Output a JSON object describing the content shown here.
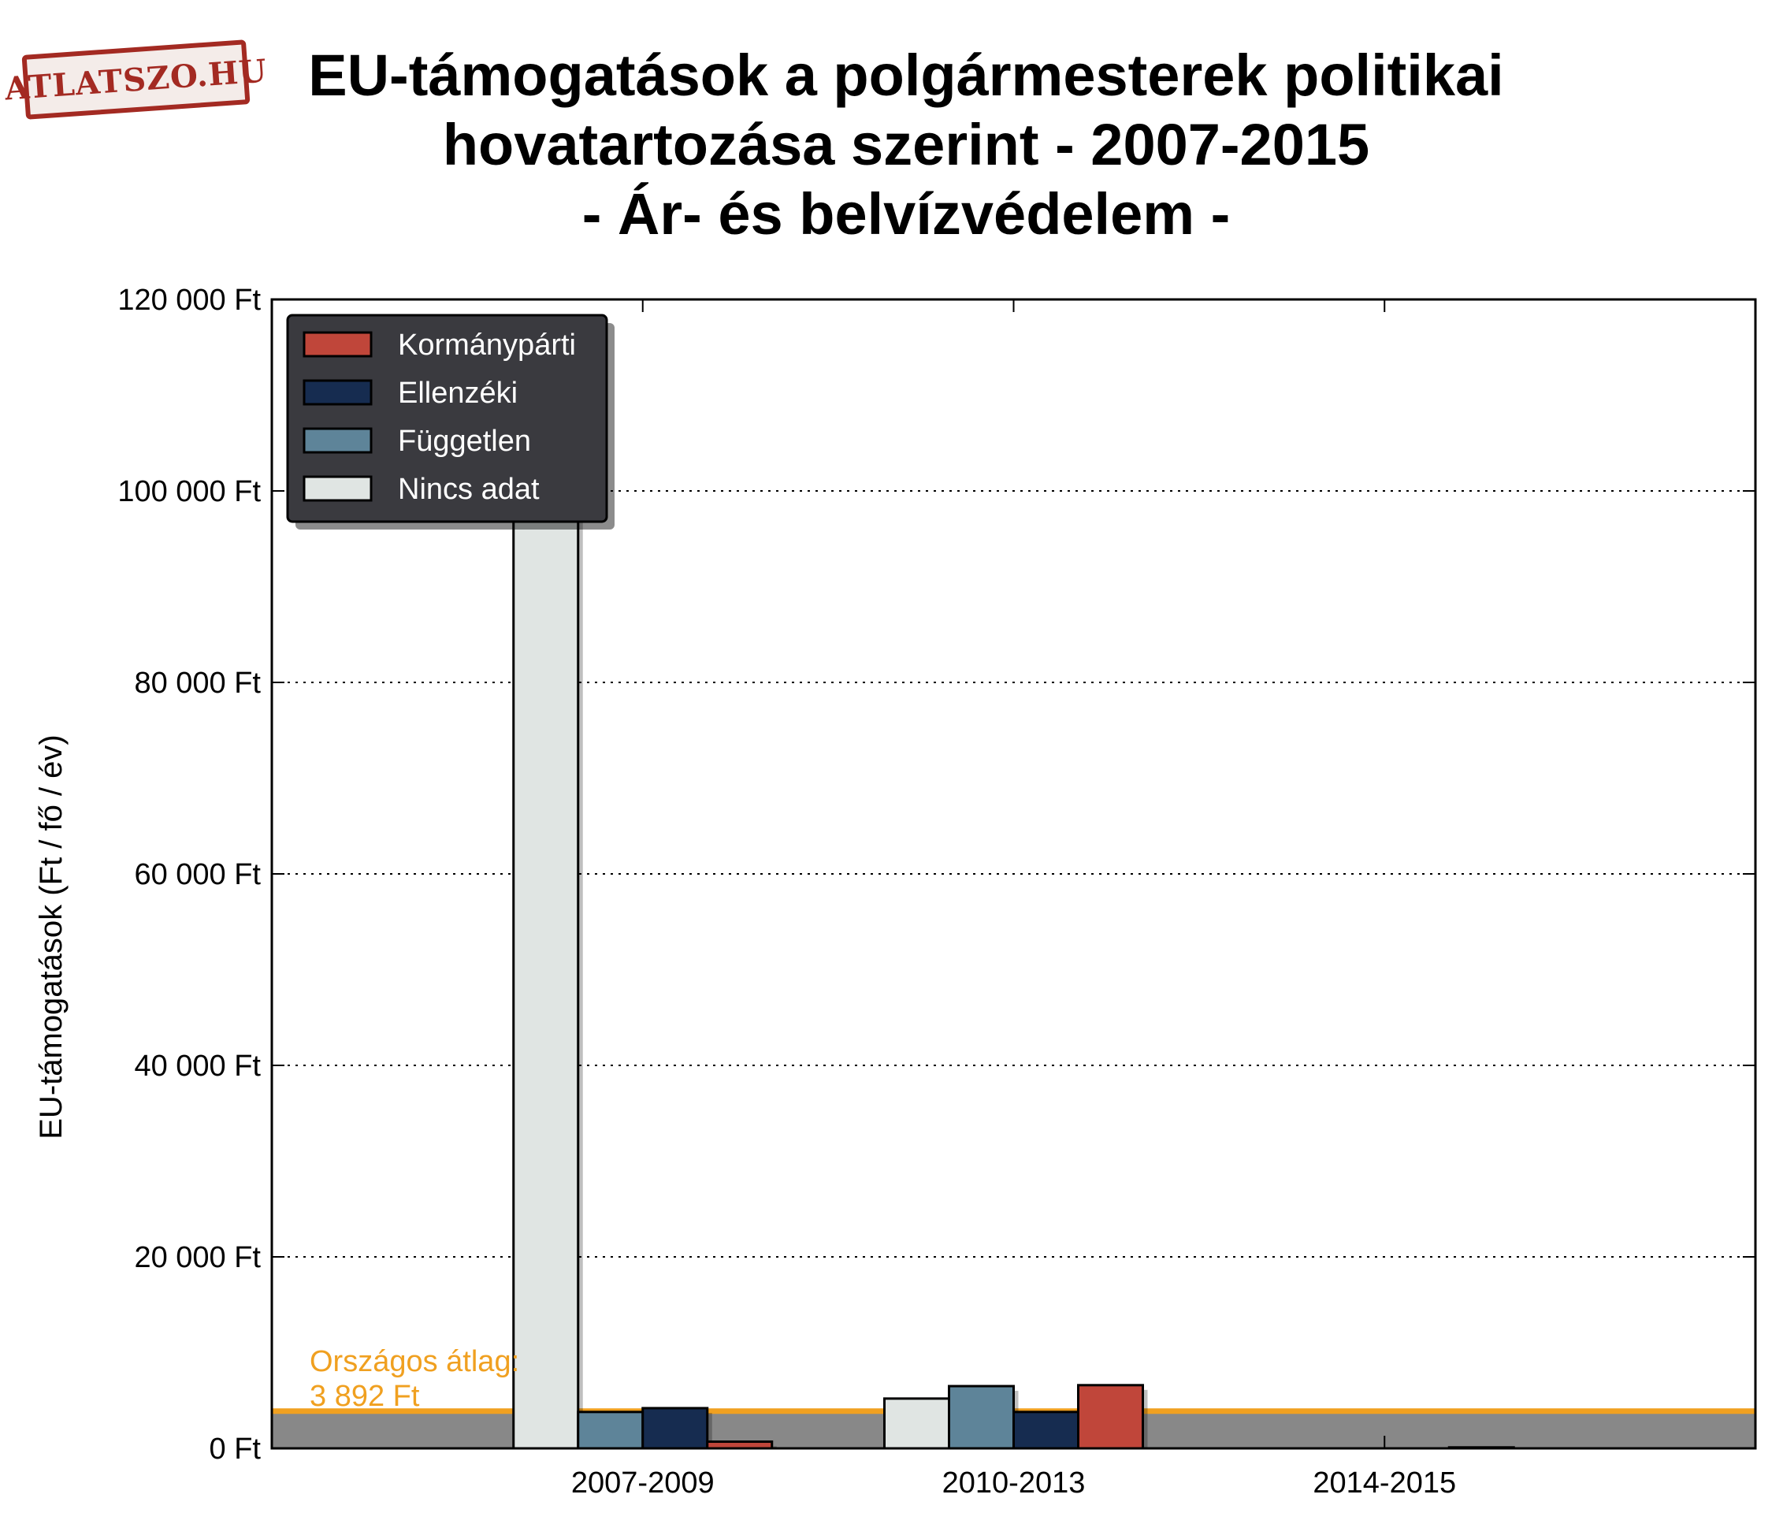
{
  "logo": {
    "text": "ATLATSZO.HU"
  },
  "chart_data": {
    "type": "bar",
    "title_lines": [
      "EU-támogatások a polgármesterek politikai",
      "hovatartozása szerint - 2007-2015",
      "- Ár- és belvízvédelem -"
    ],
    "xlabel": "",
    "ylabel": "EU-támogatások (Ft / fő / év)",
    "ylim": [
      0,
      120000
    ],
    "yticks": [
      0,
      20000,
      40000,
      60000,
      80000,
      100000,
      120000
    ],
    "ytick_labels": [
      "0 Ft",
      "20 000 Ft",
      "40 000 Ft",
      "60 000 Ft",
      "80 000 Ft",
      "100 000 Ft",
      "120 000 Ft"
    ],
    "categories": [
      "2007-2009",
      "2010-2013",
      "2014-2015"
    ],
    "grid": "horizontal dotted",
    "legend_position": "top-left",
    "series": [
      {
        "name": "Nincs adat",
        "color": "#e0e5e3",
        "values": [
          100000,
          5200,
          0
        ]
      },
      {
        "name": "Független",
        "color": "#5e8499",
        "values": [
          3800,
          6500,
          0
        ]
      },
      {
        "name": "Ellenzéki",
        "color": "#162c50",
        "values": [
          4200,
          3800,
          0
        ]
      },
      {
        "name": "Kormánypárti",
        "color": "#c0463a",
        "values": [
          700,
          6600,
          100
        ]
      }
    ],
    "legend_order": [
      "Kormánypárti",
      "Ellenzéki",
      "Független",
      "Nincs adat"
    ],
    "average": {
      "value": 3892,
      "label_line1": "Országos átlag:",
      "label_line2": "3 892 Ft",
      "color": "#f0a020"
    }
  }
}
